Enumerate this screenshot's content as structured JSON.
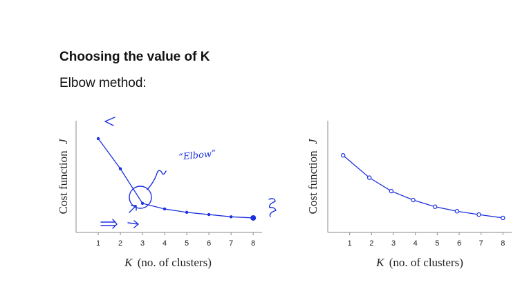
{
  "slide": {
    "title": "Choosing the value of K",
    "subtitle": "Elbow method:"
  },
  "annotations": {
    "elbow_label": "“Elbow”"
  },
  "colors": {
    "ink": "#1a2fe0",
    "axis": "#888888",
    "text": "#111111"
  },
  "chart_data": [
    {
      "type": "line",
      "title": "",
      "xlabel_var": "K",
      "xlabel_rest": "(no. of clusters)",
      "ylabel": "Cost function",
      "ylabel_var": "J",
      "x": [
        1,
        2,
        3,
        4,
        5,
        6,
        7,
        8
      ],
      "xticks": [
        1,
        2,
        3,
        4,
        5,
        6,
        7,
        8
      ],
      "y": [
        8.4,
        5.7,
        2.6,
        2.1,
        1.8,
        1.6,
        1.4,
        1.3
      ],
      "xlim": [
        0,
        8.4
      ],
      "ylim": [
        0,
        10
      ],
      "annotated_elbow_x": 3
    },
    {
      "type": "line",
      "title": "",
      "xlabel_var": "K",
      "xlabel_rest": "(no. of clusters)",
      "ylabel": "Cost function",
      "ylabel_var": "J",
      "x": [
        0.7,
        1.9,
        2.9,
        3.9,
        4.9,
        5.9,
        6.9,
        8
      ],
      "xticks": [
        1,
        2,
        3,
        4,
        5,
        6,
        7,
        8
      ],
      "y": [
        6.9,
        4.9,
        3.7,
        2.9,
        2.3,
        1.9,
        1.6,
        1.3
      ],
      "xlim": [
        0,
        8.4
      ],
      "ylim": [
        0,
        10
      ]
    }
  ]
}
